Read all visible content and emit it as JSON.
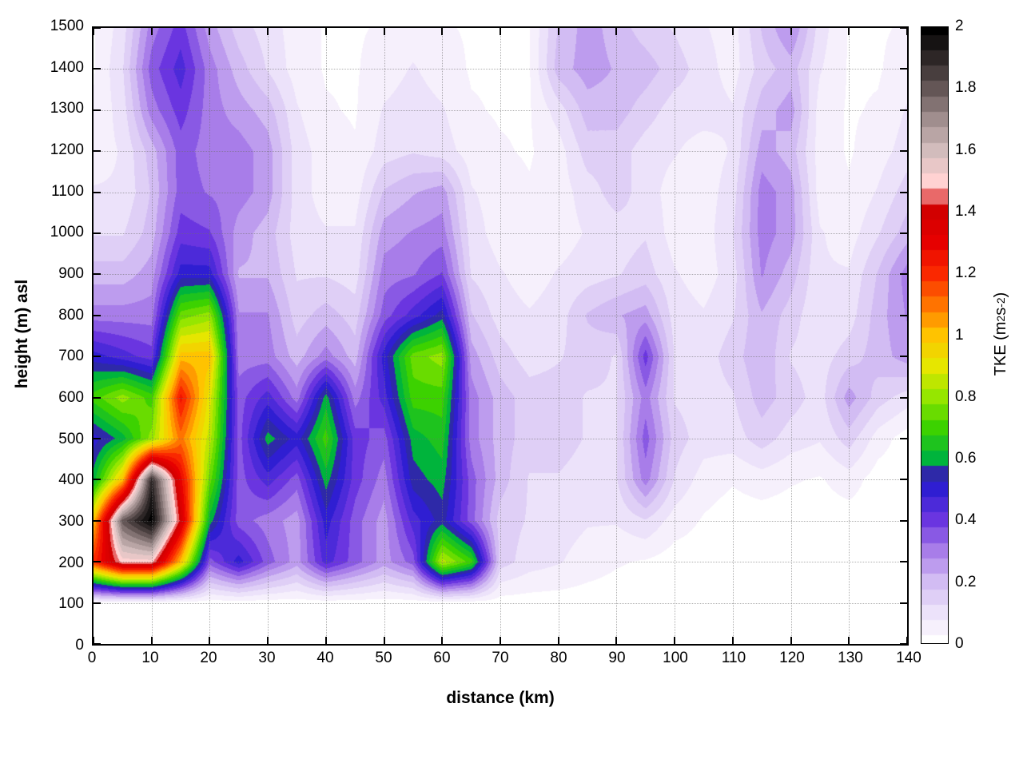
{
  "figure": {
    "background": "#ffffff",
    "frame_color": "#000000",
    "grid_color": "#6e6e6e"
  },
  "chart_data": {
    "type": "heatmap",
    "title": "",
    "xlabel": "distance (km)",
    "ylabel": "height (m) asl",
    "colorbar_label_text": "TKE (m2 s-2)",
    "colorbar_label_parts": {
      "prefix": "TKE (m",
      "sup1": "2",
      "mid": " s",
      "sup2": "-2",
      "suffix": ")"
    },
    "x_range": [
      0,
      140
    ],
    "y_range": [
      0,
      1500
    ],
    "c_range": [
      0,
      2
    ],
    "grid": "dotted",
    "legend": "colorbar-right",
    "band_step": 0.05,
    "x_ticks": {
      "values": [
        0,
        10,
        20,
        30,
        40,
        50,
        60,
        70,
        80,
        90,
        100,
        110,
        120,
        130,
        140
      ],
      "labels": [
        "0",
        "10",
        "20",
        "30",
        "40",
        "50",
        "60",
        "70",
        "80",
        "90",
        "100",
        "110",
        "120",
        "130",
        "140"
      ]
    },
    "y_ticks": {
      "values": [
        0,
        100,
        200,
        300,
        400,
        500,
        600,
        700,
        800,
        900,
        1000,
        1100,
        1200,
        1300,
        1400,
        1500
      ],
      "labels": [
        "0",
        "100",
        "200",
        "300",
        "400",
        "500",
        "600",
        "700",
        "800",
        "900",
        "1000",
        "1100",
        "1200",
        "1300",
        "1400",
        "1500"
      ]
    },
    "cb_ticks": {
      "values": [
        0,
        0.2,
        0.4,
        0.6,
        0.8,
        1,
        1.2,
        1.4,
        1.6,
        1.8,
        2
      ],
      "labels": [
        "0",
        "0.2",
        "0.4",
        "0.6",
        "0.8",
        "1",
        "1.2",
        "1.4",
        "1.6",
        "1.8",
        "2"
      ]
    },
    "palette": [
      [
        0.0,
        "#ffffff"
      ],
      [
        0.1,
        "#ece2fa"
      ],
      [
        0.2,
        "#d2bcf3"
      ],
      [
        0.3,
        "#a87de9"
      ],
      [
        0.4,
        "#6a35e0"
      ],
      [
        0.5,
        "#2f1ed2"
      ],
      [
        0.56,
        "#2e2ba0"
      ],
      [
        0.6,
        "#00b43c"
      ],
      [
        0.7,
        "#3cd200"
      ],
      [
        0.8,
        "#96e600"
      ],
      [
        0.9,
        "#e6e600"
      ],
      [
        1.0,
        "#ffc300"
      ],
      [
        1.1,
        "#ff7300"
      ],
      [
        1.2,
        "#fa2800"
      ],
      [
        1.3,
        "#e60000"
      ],
      [
        1.4,
        "#d20000"
      ],
      [
        1.5,
        "#ffd2d2"
      ],
      [
        1.6,
        "#d2bcbc"
      ],
      [
        1.7,
        "#a08e8e"
      ],
      [
        1.8,
        "#645656"
      ],
      [
        1.9,
        "#2d2626"
      ],
      [
        2.0,
        "#000000"
      ]
    ],
    "x": [
      0,
      5,
      10,
      15,
      20,
      25,
      30,
      35,
      40,
      45,
      50,
      55,
      60,
      65,
      70,
      75,
      80,
      85,
      90,
      95,
      100,
      105,
      110,
      115,
      120,
      125,
      130,
      135,
      140
    ],
    "y": [
      0,
      100,
      200,
      300,
      400,
      500,
      600,
      700,
      800,
      900,
      1000,
      1100,
      1200,
      1300,
      1400,
      1500
    ],
    "values": [
      [
        0,
        0,
        0,
        0,
        0,
        0,
        0,
        0,
        0,
        0,
        0,
        0,
        0,
        0,
        0,
        0,
        0,
        0,
        0,
        0,
        0,
        0,
        0,
        0,
        0,
        0,
        0,
        0,
        0
      ],
      [
        0,
        0,
        0,
        0,
        0,
        0,
        0,
        0,
        0,
        0,
        0,
        0,
        0,
        0,
        0,
        0,
        0,
        0,
        0,
        0,
        0,
        0,
        0,
        0,
        0,
        0,
        0,
        0,
        0
      ],
      [
        1.2,
        1.5,
        1.5,
        1.0,
        0.35,
        0.5,
        0.35,
        0.25,
        0.45,
        0.35,
        0.25,
        0.35,
        0.85,
        0.7,
        0.15,
        0.1,
        0.08,
        0.05,
        0.03,
        0.02,
        0,
        0,
        0,
        0,
        0,
        0,
        0,
        0,
        0
      ],
      [
        1.0,
        1.8,
        2.0,
        1.4,
        0.6,
        0.35,
        0.3,
        0.25,
        0.5,
        0.35,
        0.25,
        0.45,
        0.55,
        0.35,
        0.15,
        0.12,
        0.1,
        0.08,
        0.08,
        0.12,
        0.05,
        0.02,
        0,
        0,
        0,
        0,
        0,
        0,
        0
      ],
      [
        0.6,
        1.0,
        1.9,
        1.3,
        0.75,
        0.35,
        0.45,
        0.35,
        0.6,
        0.4,
        0.3,
        0.55,
        0.6,
        0.35,
        0.2,
        0.12,
        0.12,
        0.1,
        0.12,
        0.3,
        0.12,
        0.05,
        0.03,
        0.05,
        0.03,
        0.02,
        0.05,
        0,
        0
      ],
      [
        0.5,
        0.6,
        0.8,
        1.1,
        0.85,
        0.35,
        0.6,
        0.5,
        0.7,
        0.4,
        0.35,
        0.6,
        0.65,
        0.3,
        0.2,
        0.15,
        0.15,
        0.12,
        0.12,
        0.35,
        0.15,
        0.1,
        0.1,
        0.15,
        0.1,
        0.08,
        0.15,
        0.05,
        0
      ],
      [
        0.7,
        0.8,
        0.7,
        1.25,
        0.9,
        0.35,
        0.45,
        0.3,
        0.6,
        0.3,
        0.45,
        0.7,
        0.7,
        0.3,
        0.2,
        0.15,
        0.15,
        0.12,
        0.12,
        0.3,
        0.12,
        0.1,
        0.12,
        0.2,
        0.15,
        0.1,
        0.25,
        0.15,
        0.1
      ],
      [
        0.5,
        0.45,
        0.4,
        1.0,
        1.0,
        0.3,
        0.3,
        0.2,
        0.3,
        0.2,
        0.5,
        0.75,
        0.8,
        0.25,
        0.15,
        0.1,
        0.12,
        0.15,
        0.12,
        0.4,
        0.12,
        0.1,
        0.15,
        0.22,
        0.12,
        0.1,
        0.15,
        0.2,
        0.25
      ],
      [
        0.3,
        0.3,
        0.3,
        0.75,
        0.8,
        0.28,
        0.28,
        0.15,
        0.2,
        0.15,
        0.35,
        0.45,
        0.55,
        0.18,
        0.1,
        0.08,
        0.1,
        0.18,
        0.22,
        0.25,
        0.1,
        0.08,
        0.12,
        0.22,
        0.15,
        0.08,
        0.1,
        0.2,
        0.28
      ],
      [
        0.2,
        0.2,
        0.25,
        0.5,
        0.5,
        0.22,
        0.22,
        0.12,
        0.12,
        0.1,
        0.3,
        0.32,
        0.38,
        0.12,
        0.08,
        0.05,
        0.08,
        0.1,
        0.12,
        0.15,
        0.08,
        0.05,
        0.1,
        0.28,
        0.2,
        0.08,
        0.08,
        0.18,
        0.3
      ],
      [
        0.12,
        0.12,
        0.2,
        0.4,
        0.38,
        0.25,
        0.2,
        0.1,
        0.08,
        0.08,
        0.25,
        0.28,
        0.3,
        0.1,
        0.05,
        0.05,
        0.05,
        0.08,
        0.1,
        0.12,
        0.05,
        0.05,
        0.12,
        0.3,
        0.25,
        0.08,
        0.05,
        0.12,
        0.2
      ],
      [
        0.08,
        0.08,
        0.18,
        0.35,
        0.32,
        0.3,
        0.25,
        0.1,
        0.05,
        0.05,
        0.18,
        0.22,
        0.25,
        0.08,
        0.05,
        0.03,
        0.05,
        0.1,
        0.15,
        0.1,
        0.05,
        0.05,
        0.1,
        0.3,
        0.25,
        0.05,
        0.03,
        0.08,
        0.15
      ],
      [
        0.05,
        0.08,
        0.2,
        0.35,
        0.3,
        0.3,
        0.25,
        0.1,
        0.05,
        0.03,
        0.1,
        0.12,
        0.1,
        0.05,
        0.03,
        0.02,
        0.05,
        0.15,
        0.15,
        0.1,
        0.08,
        0.05,
        0.08,
        0.25,
        0.2,
        0.05,
        0.02,
        0.05,
        0.1
      ],
      [
        0.03,
        0.1,
        0.3,
        0.4,
        0.3,
        0.25,
        0.2,
        0.08,
        0.03,
        0.02,
        0.08,
        0.1,
        0.08,
        0.03,
        0.02,
        0.02,
        0.1,
        0.2,
        0.2,
        0.15,
        0.1,
        0.1,
        0.08,
        0.2,
        0.25,
        0.05,
        0.02,
        0.03,
        0.08
      ],
      [
        0.02,
        0.12,
        0.35,
        0.45,
        0.3,
        0.2,
        0.12,
        0.05,
        0.02,
        0.02,
        0.05,
        0.08,
        0.05,
        0.02,
        0.02,
        0.02,
        0.2,
        0.25,
        0.22,
        0.2,
        0.15,
        0.1,
        0.05,
        0.15,
        0.2,
        0.08,
        0.02,
        0.02,
        0.05
      ],
      [
        0.02,
        0.1,
        0.3,
        0.4,
        0.25,
        0.15,
        0.1,
        0.05,
        0.02,
        0.02,
        0.03,
        0.05,
        0.03,
        0.02,
        0.02,
        0.02,
        0.18,
        0.25,
        0.2,
        0.15,
        0.12,
        0.08,
        0.05,
        0.18,
        0.28,
        0.1,
        0.02,
        0.02,
        0.03
      ]
    ]
  }
}
